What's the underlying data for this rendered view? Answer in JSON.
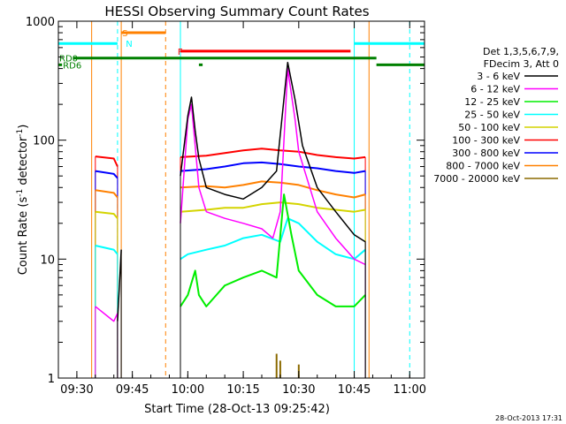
{
  "chart_data": {
    "type": "line",
    "title": "HESSI Observing Summary Count Rates",
    "xlabel": "Start Time (28-Oct-13 09:25:42)",
    "ylabel": "Count Rate (s",
    "ylabel_sup": "-1",
    "ylabel_mid": " detector",
    "ylabel_end": ")",
    "y_scale": "log",
    "ylim": [
      1,
      1000
    ],
    "xlim": [
      "09:25",
      "11:04"
    ],
    "x_ticks": [
      "09:30",
      "09:45",
      "10:00",
      "10:15",
      "10:30",
      "10:45",
      "11:00"
    ],
    "y_ticks": [
      "1",
      "10",
      "100",
      "1000"
    ],
    "legend": {
      "placement": "right",
      "header1": "Det 1,3,5,6,7,9,",
      "header2": "FDecim 3, Att 0",
      "items": [
        {
          "label": "3 - 6 keV",
          "color": "#000000"
        },
        {
          "label": "6 - 12 keV",
          "color": "#ff00ff"
        },
        {
          "label": "12 - 25 keV",
          "color": "#00ee00"
        },
        {
          "label": "25 - 50 keV",
          "color": "#00ffff"
        },
        {
          "label": "50 - 100 keV",
          "color": "#d4d400"
        },
        {
          "label": "100 - 300 keV",
          "color": "#ff0000"
        },
        {
          "label": "300 - 800 keV",
          "color": "#0000ff"
        },
        {
          "label": "800 - 7000 keV",
          "color": "#ff8000"
        },
        {
          "label": "7000 - 20000 keV",
          "color": "#8b6a00"
        }
      ]
    },
    "series": [
      {
        "color": "#ff0000",
        "width": 2,
        "segments": [
          [
            [
              "09:35",
              73
            ],
            [
              "09:40",
              70
            ],
            [
              "09:41",
              60
            ]
          ],
          [
            [
              "09:58",
              72
            ],
            [
              "10:05",
              74
            ],
            [
              "10:10",
              78
            ],
            [
              "10:15",
              82
            ],
            [
              "10:20",
              85
            ],
            [
              "10:25",
              82
            ],
            [
              "10:30",
              80
            ],
            [
              "10:35",
              75
            ],
            [
              "10:40",
              72
            ],
            [
              "10:45",
              70
            ],
            [
              "10:48",
              72
            ]
          ]
        ]
      },
      {
        "color": "#0000ff",
        "width": 2,
        "segments": [
          [
            [
              "09:35",
              55
            ],
            [
              "09:40",
              52
            ],
            [
              "09:41",
              48
            ]
          ],
          [
            [
              "09:58",
              55
            ],
            [
              "10:05",
              57
            ],
            [
              "10:10",
              60
            ],
            [
              "10:15",
              64
            ],
            [
              "10:20",
              65
            ],
            [
              "10:25",
              63
            ],
            [
              "10:30",
              60
            ],
            [
              "10:35",
              58
            ],
            [
              "10:40",
              55
            ],
            [
              "10:45",
              53
            ],
            [
              "10:48",
              55
            ]
          ]
        ]
      },
      {
        "color": "#ff8000",
        "width": 2,
        "segments": [
          [
            [
              "09:35",
              38
            ],
            [
              "09:40",
              36
            ],
            [
              "09:41",
              33
            ]
          ],
          [
            [
              "09:58",
              40
            ],
            [
              "10:05",
              41
            ],
            [
              "10:10",
              40
            ],
            [
              "10:15",
              42
            ],
            [
              "10:20",
              45
            ],
            [
              "10:25",
              44
            ],
            [
              "10:30",
              42
            ],
            [
              "10:35",
              38
            ],
            [
              "10:40",
              35
            ],
            [
              "10:45",
              33
            ],
            [
              "10:48",
              35
            ]
          ]
        ]
      },
      {
        "color": "#d4d400",
        "width": 2,
        "segments": [
          [
            [
              "09:35",
              25
            ],
            [
              "09:40",
              24
            ],
            [
              "09:41",
              22
            ]
          ],
          [
            [
              "09:58",
              25
            ],
            [
              "10:05",
              26
            ],
            [
              "10:10",
              27
            ],
            [
              "10:15",
              27
            ],
            [
              "10:20",
              29
            ],
            [
              "10:25",
              30
            ],
            [
              "10:30",
              29
            ],
            [
              "10:35",
              27
            ],
            [
              "10:40",
              26
            ],
            [
              "10:45",
              25
            ],
            [
              "10:48",
              26
            ]
          ]
        ]
      },
      {
        "color": "#00ffff",
        "width": 2,
        "segments": [
          [
            [
              "09:35",
              13
            ],
            [
              "09:40",
              12
            ],
            [
              "09:41",
              11
            ]
          ],
          [
            [
              "09:58",
              10
            ],
            [
              "10:00",
              11
            ],
            [
              "10:05",
              12
            ],
            [
              "10:10",
              13
            ],
            [
              "10:15",
              15
            ],
            [
              "10:20",
              16
            ],
            [
              "10:25",
              14
            ],
            [
              "10:27",
              22
            ],
            [
              "10:30",
              20
            ],
            [
              "10:35",
              14
            ],
            [
              "10:40",
              11
            ],
            [
              "10:45",
              10
            ],
            [
              "10:48",
              12
            ]
          ]
        ]
      },
      {
        "color": "#00ee00",
        "width": 2,
        "segments": [
          [
            [
              "09:58",
              4
            ],
            [
              "10:00",
              5
            ],
            [
              "10:02",
              8
            ],
            [
              "10:03",
              5
            ],
            [
              "10:05",
              4
            ],
            [
              "10:10",
              6
            ],
            [
              "10:15",
              7
            ],
            [
              "10:20",
              8
            ],
            [
              "10:24",
              7
            ],
            [
              "10:26",
              35
            ],
            [
              "10:28",
              16
            ],
            [
              "10:30",
              8
            ],
            [
              "10:35",
              5
            ],
            [
              "10:40",
              4
            ],
            [
              "10:45",
              4
            ],
            [
              "10:48",
              5
            ]
          ]
        ]
      },
      {
        "color": "#ff00ff",
        "width": 1.5,
        "segments": [
          [
            [
              "09:35",
              4
            ],
            [
              "09:40",
              3
            ],
            [
              "09:41",
              3.5
            ]
          ],
          [
            [
              "09:58",
              20
            ],
            [
              "10:00",
              150
            ],
            [
              "10:01",
              200
            ],
            [
              "10:02",
              90
            ],
            [
              "10:03",
              40
            ],
            [
              "10:05",
              25
            ],
            [
              "10:10",
              22
            ],
            [
              "10:15",
              20
            ],
            [
              "10:20",
              18
            ],
            [
              "10:23",
              15
            ],
            [
              "10:25",
              25
            ],
            [
              "10:27",
              400
            ],
            [
              "10:29",
              150
            ],
            [
              "10:30",
              80
            ],
            [
              "10:35",
              25
            ],
            [
              "10:40",
              15
            ],
            [
              "10:45",
              10
            ],
            [
              "10:48",
              9
            ]
          ]
        ]
      },
      {
        "color": "#000000",
        "width": 1.5,
        "segments": [
          [
            [
              "09:41",
              3
            ],
            [
              "09:42",
              12
            ]
          ],
          [
            [
              "09:58",
              50
            ],
            [
              "10:00",
              160
            ],
            [
              "10:01",
              230
            ],
            [
              "10:02",
              120
            ],
            [
              "10:03",
              70
            ],
            [
              "10:05",
              40
            ],
            [
              "10:10",
              35
            ],
            [
              "10:15",
              32
            ],
            [
              "10:20",
              40
            ],
            [
              "10:24",
              55
            ],
            [
              "10:27",
              450
            ],
            [
              "10:29",
              220
            ],
            [
              "10:31",
              90
            ],
            [
              "10:35",
              40
            ],
            [
              "10:40",
              25
            ],
            [
              "10:45",
              16
            ],
            [
              "10:48",
              14
            ]
          ]
        ]
      }
    ],
    "verticals": [
      {
        "x": "09:34",
        "color": "#ff8000"
      },
      {
        "x": "09:41",
        "color": "#00ffff",
        "dashed": true
      },
      {
        "x": "09:42",
        "color": "#ff8000"
      },
      {
        "x": "09:54",
        "color": "#ff8000",
        "dashed": true
      },
      {
        "x": "09:58",
        "color": "#00ffff"
      },
      {
        "x": "10:45",
        "color": "#00ffff"
      },
      {
        "x": "10:49",
        "color": "#ff8000"
      },
      {
        "x": "11:00",
        "color": "#00ffff",
        "dashed": true
      }
    ],
    "flag_bars": [
      {
        "label": "",
        "color": "#00ffff",
        "y": 650,
        "segments": [
          [
            "09:25",
            "09:41"
          ],
          [
            "10:45",
            "11:04"
          ]
        ]
      },
      {
        "label": "S",
        "color": "#ff8000",
        "y": 800,
        "at": "09:42",
        "segments": [
          [
            "09:42",
            "09:54"
          ]
        ]
      },
      {
        "label": "N",
        "color": "#00ffff",
        "y": 650,
        "at": "09:43",
        "segments": []
      },
      {
        "label": "F",
        "color": "#ff0000",
        "y": 560,
        "at": "09:57",
        "segments": [
          [
            "09:58",
            "10:44"
          ]
        ]
      },
      {
        "label": "RD0",
        "color": "#008000",
        "y": 490,
        "at": "09:25",
        "segments": [
          [
            "09:29",
            "10:51"
          ]
        ]
      },
      {
        "label": "RD6",
        "color": "#008000",
        "y": 430,
        "at": "09:26",
        "segments": [
          [
            "09:25",
            "09:26"
          ],
          [
            "10:03",
            "10:04"
          ],
          [
            "10:51",
            "11:04"
          ]
        ]
      }
    ],
    "hard_bumps": [
      {
        "x": "10:24",
        "h": 1.6
      },
      {
        "x": "10:25",
        "h": 1.4
      },
      {
        "x": "10:30",
        "h": 1.3
      }
    ]
  },
  "footer_date": "28-Oct-2013 17:31"
}
